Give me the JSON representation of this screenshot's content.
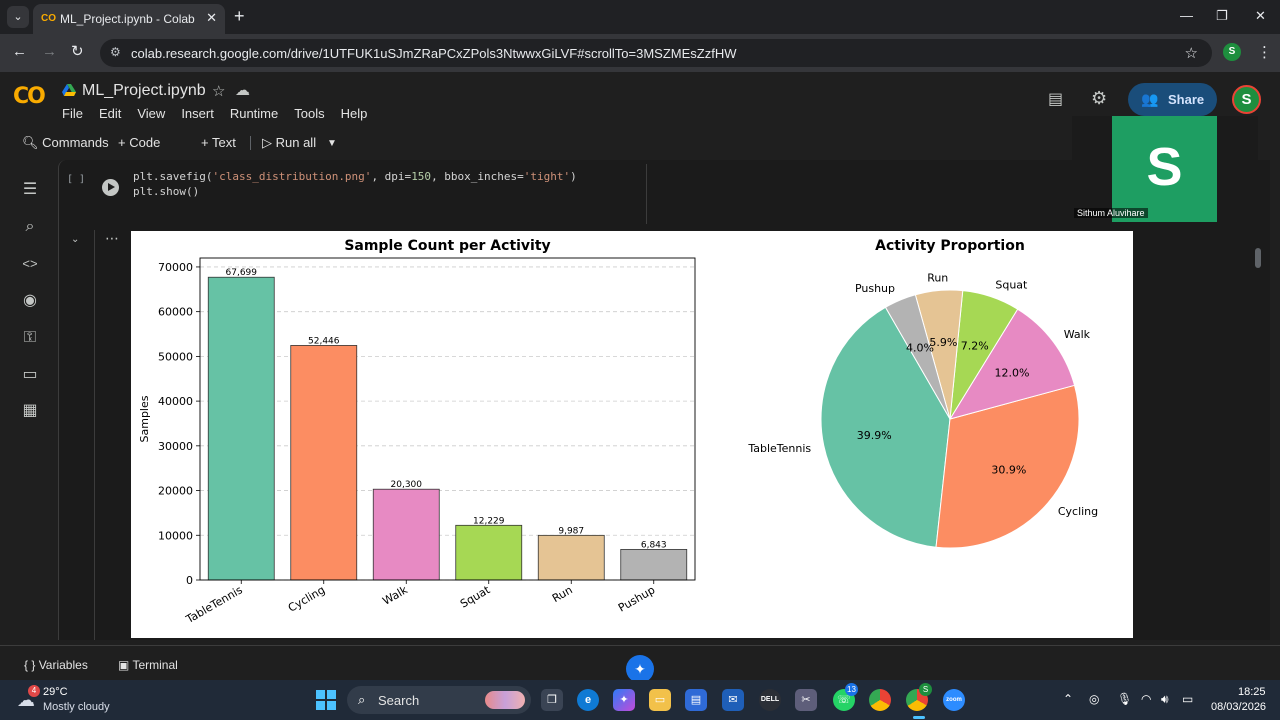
{
  "browser": {
    "tab_title": "ML_Project.ipynb - Colab",
    "url": "colab.research.google.com/drive/1UTFUK1uSJmZRaPCxZPols3NtwwxGiLVF#scrollTo=3MSZMEsZzfHW",
    "profile_initial": "S"
  },
  "colab": {
    "logo": "CO",
    "notebook_title": "ML_Project.ipynb",
    "menu": [
      "File",
      "Edit",
      "View",
      "Insert",
      "Runtime",
      "Tools",
      "Help"
    ],
    "share_label": "Share",
    "avatar_initial": "S",
    "toolbar": {
      "commands": "Commands",
      "code": "Code",
      "text": "Text",
      "run_all": "Run all"
    }
  },
  "video": {
    "letter": "S",
    "name": "Sithum Aluvihare"
  },
  "cell": {
    "exec_count": "[ ]",
    "line1_pre": "plt.savefig(",
    "line1_str": "'class_distribution.png'",
    "line1_mid": ", dpi=",
    "line1_num": "150",
    "line1_mid2": ", bbox_inches=",
    "line1_str2": "'tight'",
    "line1_post": ")",
    "line2": "plt.show()"
  },
  "chart_data": [
    {
      "type": "bar",
      "title": "Sample Count per Activity",
      "ylabel": "Samples",
      "xlabel": "",
      "categories": [
        "TableTennis",
        "Cycling",
        "Walk",
        "Squat",
        "Run",
        "Pushup"
      ],
      "values": [
        67699,
        52446,
        20300,
        12229,
        9987,
        6843
      ],
      "value_labels": [
        "67,699",
        "52,446",
        "20,300",
        "12,229",
        "9,987",
        "6,843"
      ],
      "colors": [
        "#66c2a5",
        "#fc8d62",
        "#e78ac3",
        "#a6d854",
        "#e5c494",
        "#b3b3b3"
      ],
      "ylim": [
        0,
        72000
      ],
      "yticks": [
        0,
        10000,
        20000,
        30000,
        40000,
        50000,
        60000,
        70000
      ],
      "grid": "horizontal dashed"
    },
    {
      "type": "pie",
      "title": "Activity Proportion",
      "labels": [
        "TableTennis",
        "Cycling",
        "Walk",
        "Squat",
        "Run",
        "Pushup"
      ],
      "values": [
        39.9,
        30.9,
        12.0,
        7.2,
        5.9,
        4.0
      ],
      "pct_labels": [
        "39.9%",
        "30.9%",
        "12.0%",
        "7.2%",
        "5.9%",
        "4.0%"
      ],
      "colors": [
        "#66c2a5",
        "#fc8d62",
        "#e78ac3",
        "#a6d854",
        "#e5c494",
        "#b3b3b3"
      ]
    }
  ],
  "statusbar": {
    "variables": "Variables",
    "terminal": "Terminal"
  },
  "taskbar": {
    "weather_badge": "4",
    "temp": "29°C",
    "weather": "Mostly cloudy",
    "search": "Search",
    "whatsapp_badge": "13",
    "chrome_badge": "S",
    "time": "18:25",
    "date": "08/03/2026"
  }
}
